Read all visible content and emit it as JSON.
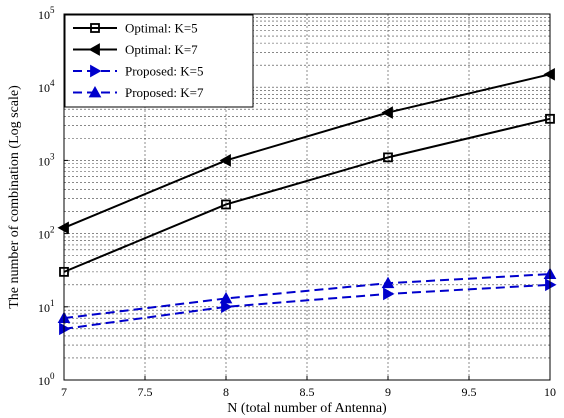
{
  "chart_data": {
    "type": "line",
    "xlabel": "N (total number of Antenna)",
    "ylabel": "The number of combination (Log scale)",
    "xlim": [
      7,
      10
    ],
    "ylim": [
      1,
      100000
    ],
    "yscale": "log",
    "grid": true,
    "legend_position": "top-left",
    "x_ticks": [
      "7",
      "7.5",
      "8",
      "8.5",
      "9",
      "9.5",
      "10"
    ],
    "y_ticks": [
      {
        "base": "10",
        "exp": "0"
      },
      {
        "base": "10",
        "exp": "1"
      },
      {
        "base": "10",
        "exp": "2"
      },
      {
        "base": "10",
        "exp": "3"
      },
      {
        "base": "10",
        "exp": "4"
      },
      {
        "base": "10",
        "exp": "5"
      }
    ],
    "series": [
      {
        "name": "Optimal: K=5",
        "x": [
          7,
          8,
          9,
          10
        ],
        "y": [
          30,
          250,
          1100,
          3700
        ],
        "color": "#000000",
        "dash": "solid",
        "marker": "square"
      },
      {
        "name": "Optimal: K=7",
        "x": [
          7,
          8,
          9,
          10
        ],
        "y": [
          120,
          1000,
          4500,
          15000
        ],
        "color": "#000000",
        "dash": "solid",
        "marker": "triangle-left"
      },
      {
        "name": "Proposed: K=5",
        "x": [
          7,
          8,
          9,
          10
        ],
        "y": [
          5,
          10,
          15,
          20
        ],
        "color": "#0000cc",
        "dash": "dashed",
        "marker": "triangle-right"
      },
      {
        "name": "Proposed: K=7",
        "x": [
          7,
          8,
          9,
          10
        ],
        "y": [
          7,
          13,
          21,
          28
        ],
        "color": "#0000cc",
        "dash": "dashed",
        "marker": "triangle-up"
      }
    ]
  }
}
